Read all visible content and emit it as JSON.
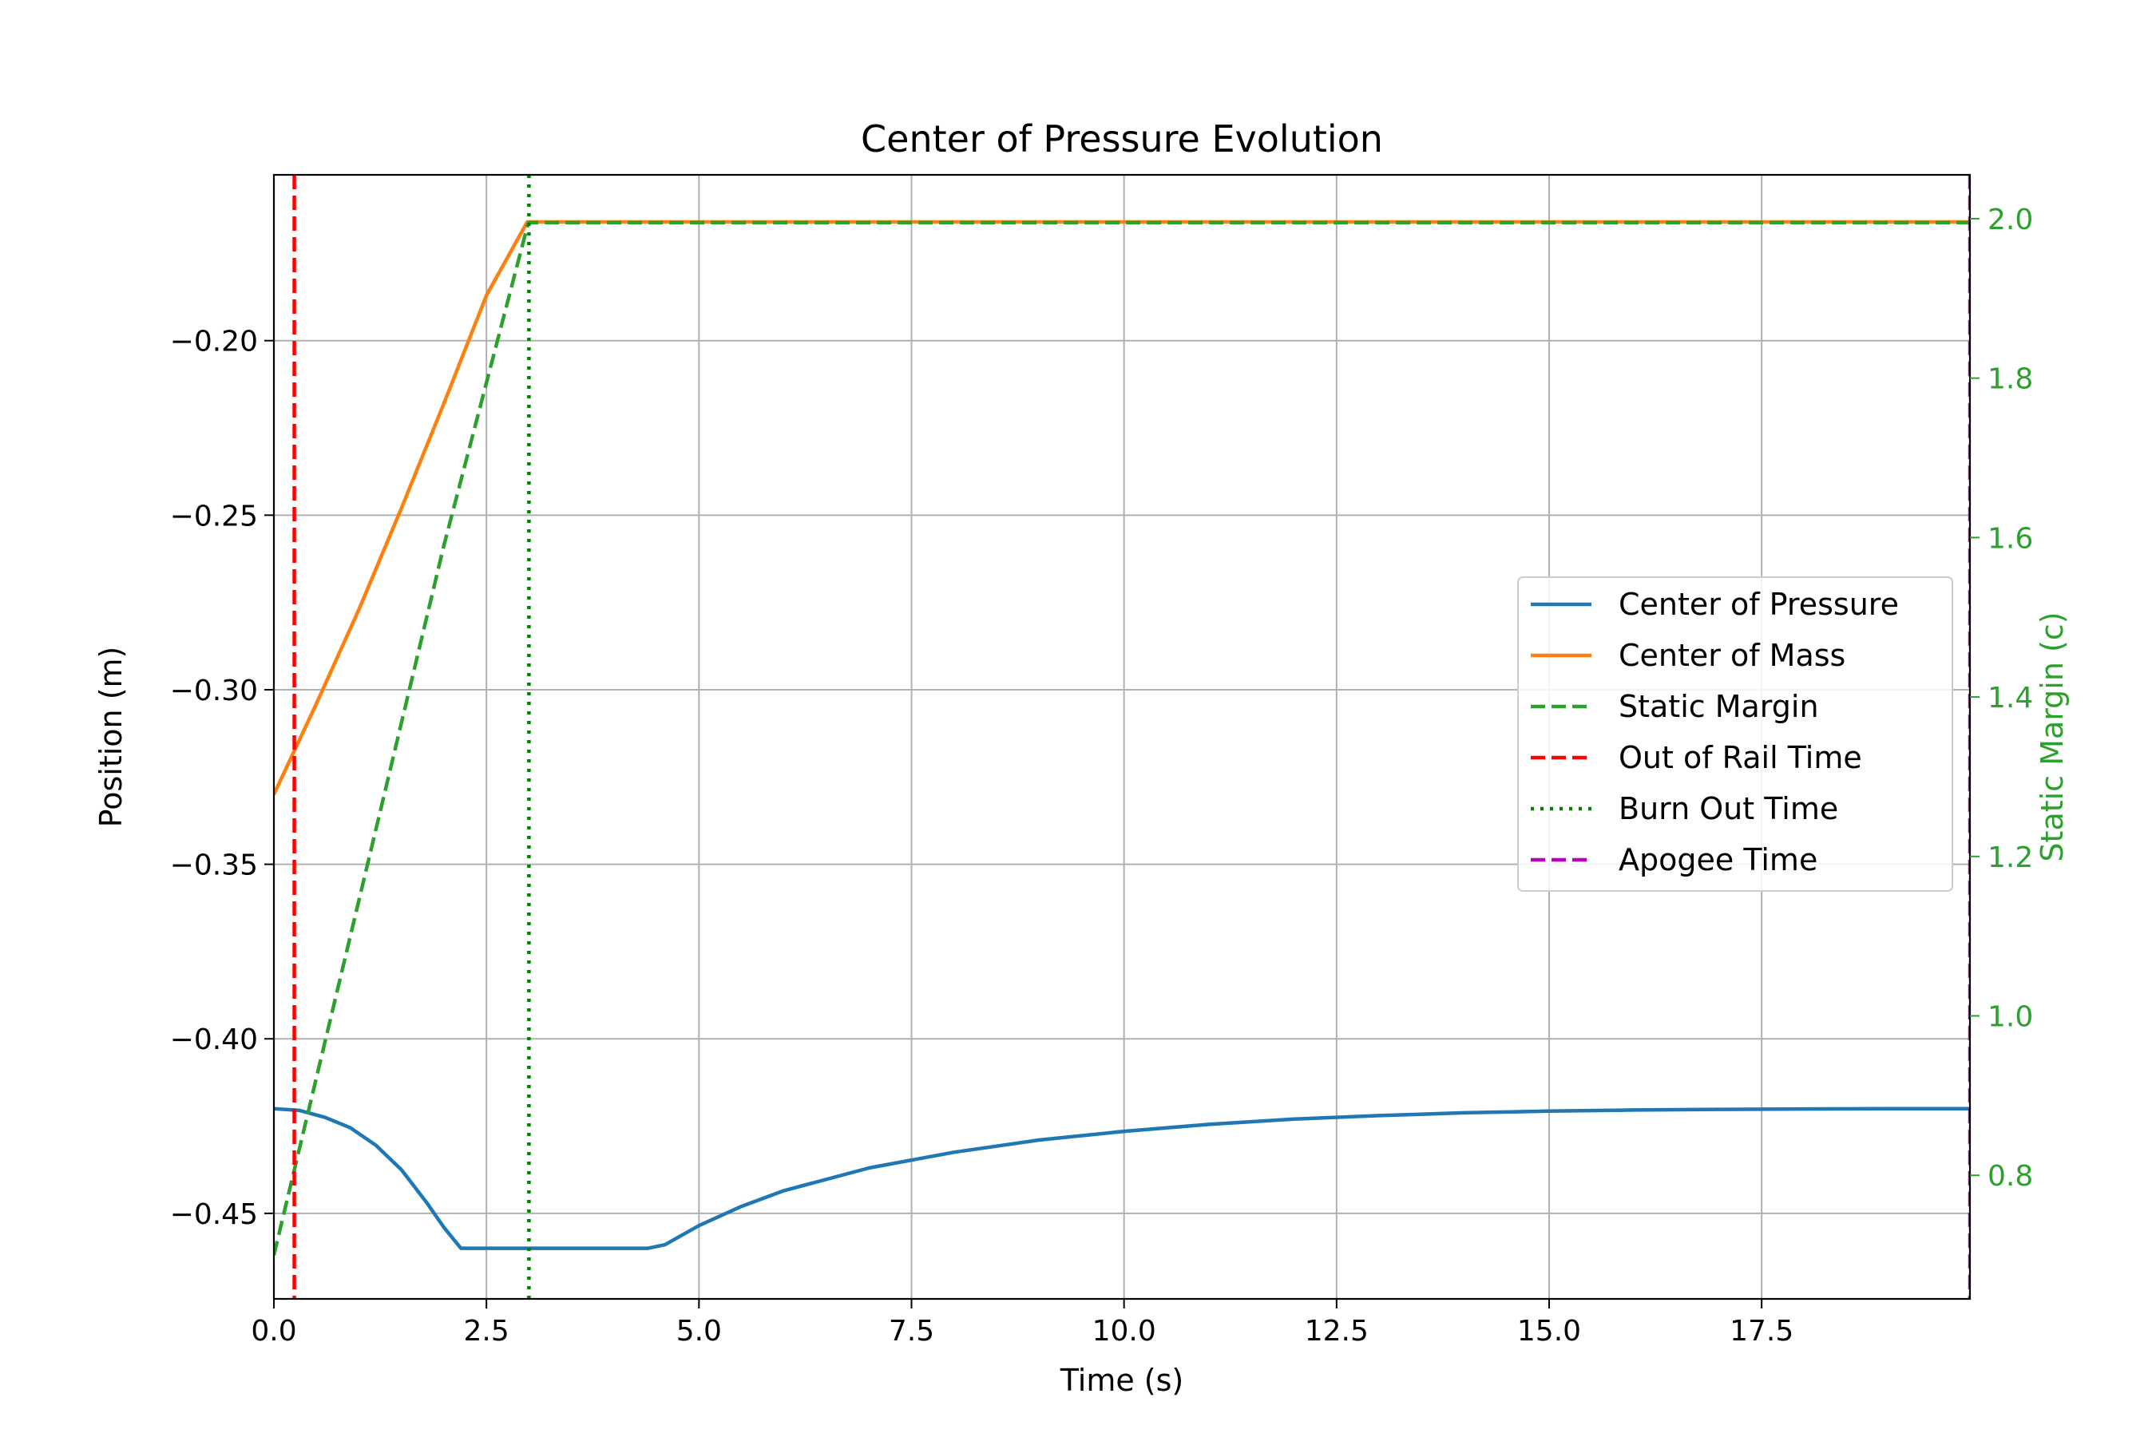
{
  "chart_data": {
    "type": "line",
    "title": "Center of Pressure Evolution",
    "xlabel": "Time (s)",
    "ylabel": "Position (m)",
    "y2label": "Static Margin (c)",
    "xlim": [
      0,
      19.95
    ],
    "ylim": [
      -0.4745,
      -0.1525
    ],
    "y2lim": [
      0.645,
      2.055
    ],
    "xticks": [
      0.0,
      2.5,
      5.0,
      7.5,
      10.0,
      12.5,
      15.0,
      17.5
    ],
    "xtick_labels": [
      "0.0",
      "2.5",
      "5.0",
      "7.5",
      "10.0",
      "12.5",
      "15.0",
      "17.5"
    ],
    "yticks": [
      -0.45,
      -0.4,
      -0.35,
      -0.3,
      -0.25,
      -0.2
    ],
    "ytick_labels": [
      "−0.45",
      "−0.40",
      "−0.35",
      "−0.30",
      "−0.25",
      "−0.20"
    ],
    "y2ticks": [
      0.8,
      1.0,
      1.2,
      1.4,
      1.6,
      1.8,
      2.0
    ],
    "y2tick_labels": [
      "0.8",
      "1.0",
      "1.2",
      "1.4",
      "1.6",
      "1.8",
      "2.0"
    ],
    "grid": true,
    "legend_position": "center-right",
    "series": [
      {
        "name": "Center of Pressure",
        "axis": "left",
        "color": "#1f77b4",
        "style": "solid",
        "x": [
          0.0,
          0.3,
          0.6,
          0.9,
          1.2,
          1.5,
          1.8,
          2.0,
          2.2,
          2.5,
          3.0,
          3.5,
          4.0,
          4.4,
          4.6,
          5.0,
          5.5,
          6.0,
          7.0,
          8.0,
          9.0,
          10.0,
          11.0,
          12.0,
          13.0,
          14.0,
          15.0,
          16.0,
          17.0,
          18.0,
          19.0,
          19.95
        ],
        "y": [
          -0.42,
          -0.4205,
          -0.4225,
          -0.4255,
          -0.4305,
          -0.4375,
          -0.447,
          -0.454,
          -0.46,
          -0.46,
          -0.46,
          -0.46,
          -0.46,
          -0.46,
          -0.459,
          -0.4535,
          -0.448,
          -0.4435,
          -0.437,
          -0.4325,
          -0.429,
          -0.4265,
          -0.4245,
          -0.423,
          -0.422,
          -0.4212,
          -0.4207,
          -0.4204,
          -0.4202,
          -0.4201,
          -0.42,
          -0.42
        ]
      },
      {
        "name": "Center of Mass",
        "axis": "left",
        "color": "#ff7f0e",
        "style": "solid",
        "x": [
          0.0,
          0.5,
          1.0,
          1.5,
          2.0,
          2.5,
          2.98,
          3.0,
          5.0,
          10.0,
          15.0,
          19.95
        ],
        "y": [
          -0.33,
          -0.304,
          -0.277,
          -0.248,
          -0.218,
          -0.187,
          -0.166,
          -0.166,
          -0.166,
          -0.166,
          -0.166,
          -0.166
        ]
      },
      {
        "name": "Static Margin",
        "axis": "right",
        "color": "#2ca02c",
        "style": "dashed",
        "x": [
          0.0,
          1.0,
          2.0,
          2.98,
          3.0,
          10.0,
          19.95
        ],
        "y": [
          0.7,
          1.145,
          1.59,
          1.99,
          1.995,
          1.995,
          1.995
        ]
      }
    ],
    "vlines": [
      {
        "name": "Out of Rail Time",
        "x": 0.24,
        "color": "#ff0000",
        "style": "dashed"
      },
      {
        "name": "Burn Out Time",
        "x": 3.0,
        "color": "#008000",
        "style": "dotted"
      },
      {
        "name": "Apogee Time",
        "x": 19.95,
        "color": "#bf00bf",
        "style": "dashed"
      }
    ]
  }
}
